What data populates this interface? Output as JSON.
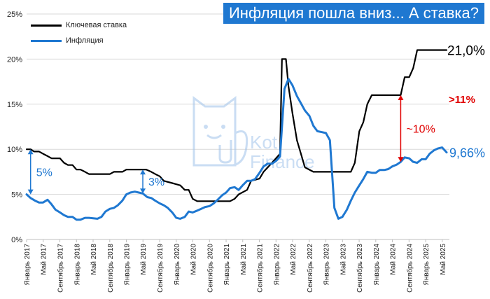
{
  "title": "Инфляция пошла вниз... А ставка?",
  "legend": [
    {
      "label": "Ключевая ставка",
      "color": "#000000"
    },
    {
      "label": "Инфляция",
      "color": "#1f78d1"
    }
  ],
  "watermark": {
    "line1": "Kot",
    "line2": "Finance",
    "icon": "cat-icon"
  },
  "colors": {
    "rate": "#000000",
    "inflation": "#1f78d1",
    "accent_red": "#e00000",
    "grid": "#d9d9d9"
  },
  "chart_data": {
    "type": "line",
    "title": "Инфляция пошла вниз... А ставка?",
    "xlabel": "",
    "ylabel": "",
    "ylim": [
      0,
      25
    ],
    "y_ticks": [
      "0%",
      "5%",
      "10%",
      "15%",
      "20%",
      "25%"
    ],
    "x_ticks": [
      {
        "t": 2017.0,
        "label": "Январь 2017"
      },
      {
        "t": 2017.333,
        "label": "Май 2017"
      },
      {
        "t": 2017.667,
        "label": "Сентябрь 2017"
      },
      {
        "t": 2018.0,
        "label": "Январь 2018"
      },
      {
        "t": 2018.333,
        "label": "Май 2018"
      },
      {
        "t": 2018.667,
        "label": "Сентябрь 2018"
      },
      {
        "t": 2019.0,
        "label": "Январь 2019"
      },
      {
        "t": 2019.333,
        "label": "Май 2019"
      },
      {
        "t": 2019.667,
        "label": "Сентябрь 2019"
      },
      {
        "t": 2020.0,
        "label": "Январь 2020"
      },
      {
        "t": 2020.333,
        "label": "Май 2020"
      },
      {
        "t": 2020.667,
        "label": "Сентябрь 2020"
      },
      {
        "t": 2021.0,
        "label": "Январь 2021"
      },
      {
        "t": 2021.333,
        "label": "Май 2021"
      },
      {
        "t": 2021.667,
        "label": "Сентябрь 2021"
      },
      {
        "t": 2022.0,
        "label": "Январь 2022"
      },
      {
        "t": 2022.333,
        "label": "Май 2022"
      },
      {
        "t": 2022.667,
        "label": "Сентябрь 2022"
      },
      {
        "t": 2023.0,
        "label": "Январь 2023"
      },
      {
        "t": 2023.333,
        "label": "Май 2023"
      },
      {
        "t": 2023.667,
        "label": "Сентябрь 2023"
      },
      {
        "t": 2024.0,
        "label": "Январь 2024"
      },
      {
        "t": 2024.333,
        "label": "Май 2024"
      },
      {
        "t": 2024.667,
        "label": "Сентябрь 2024"
      },
      {
        "t": 2025.0,
        "label": "Январь 2025"
      },
      {
        "t": 2025.333,
        "label": "Май 2025"
      }
    ],
    "series": [
      {
        "name": "Ключевая ставка",
        "color": "#000000",
        "points": [
          [
            2017.0,
            10.0
          ],
          [
            2017.08,
            10.0
          ],
          [
            2017.15,
            9.75
          ],
          [
            2017.25,
            9.75
          ],
          [
            2017.33,
            9.5
          ],
          [
            2017.42,
            9.25
          ],
          [
            2017.5,
            9.0
          ],
          [
            2017.67,
            9.0
          ],
          [
            2017.75,
            8.5
          ],
          [
            2017.83,
            8.25
          ],
          [
            2017.92,
            8.25
          ],
          [
            2018.0,
            7.75
          ],
          [
            2018.08,
            7.75
          ],
          [
            2018.17,
            7.5
          ],
          [
            2018.25,
            7.25
          ],
          [
            2018.5,
            7.25
          ],
          [
            2018.67,
            7.25
          ],
          [
            2018.75,
            7.5
          ],
          [
            2018.92,
            7.5
          ],
          [
            2019.0,
            7.75
          ],
          [
            2019.4,
            7.75
          ],
          [
            2019.5,
            7.5
          ],
          [
            2019.58,
            7.25
          ],
          [
            2019.67,
            7.0
          ],
          [
            2019.75,
            6.5
          ],
          [
            2019.92,
            6.25
          ],
          [
            2020.08,
            6.0
          ],
          [
            2020.17,
            5.5
          ],
          [
            2020.25,
            5.5
          ],
          [
            2020.33,
            4.5
          ],
          [
            2020.42,
            4.25
          ],
          [
            2020.58,
            4.25
          ],
          [
            2021.08,
            4.25
          ],
          [
            2021.17,
            4.5
          ],
          [
            2021.25,
            5.0
          ],
          [
            2021.42,
            5.5
          ],
          [
            2021.5,
            6.5
          ],
          [
            2021.67,
            6.75
          ],
          [
            2021.75,
            7.5
          ],
          [
            2021.92,
            8.5
          ],
          [
            2022.08,
            9.5
          ],
          [
            2022.12,
            20.0
          ],
          [
            2022.2,
            20.0
          ],
          [
            2022.25,
            17.0
          ],
          [
            2022.33,
            14.0
          ],
          [
            2022.42,
            11.0
          ],
          [
            2022.5,
            9.5
          ],
          [
            2022.58,
            8.0
          ],
          [
            2022.75,
            7.5
          ],
          [
            2023.5,
            7.5
          ],
          [
            2023.58,
            8.5
          ],
          [
            2023.67,
            12.0
          ],
          [
            2023.75,
            13.0
          ],
          [
            2023.83,
            15.0
          ],
          [
            2023.92,
            16.0
          ],
          [
            2024.0,
            16.0
          ],
          [
            2024.5,
            16.0
          ],
          [
            2024.58,
            18.0
          ],
          [
            2024.67,
            18.0
          ],
          [
            2024.75,
            19.0
          ],
          [
            2024.83,
            21.0
          ],
          [
            2025.42,
            21.0
          ]
        ]
      },
      {
        "name": "Инфляция",
        "color": "#1f78d1",
        "points": [
          [
            2017.0,
            5.0
          ],
          [
            2017.08,
            4.6
          ],
          [
            2017.17,
            4.3
          ],
          [
            2017.25,
            4.1
          ],
          [
            2017.33,
            4.1
          ],
          [
            2017.42,
            4.4
          ],
          [
            2017.5,
            3.9
          ],
          [
            2017.58,
            3.3
          ],
          [
            2017.67,
            3.0
          ],
          [
            2017.75,
            2.7
          ],
          [
            2017.83,
            2.5
          ],
          [
            2017.92,
            2.5
          ],
          [
            2018.0,
            2.2
          ],
          [
            2018.08,
            2.2
          ],
          [
            2018.17,
            2.4
          ],
          [
            2018.25,
            2.4
          ],
          [
            2018.42,
            2.3
          ],
          [
            2018.5,
            2.5
          ],
          [
            2018.58,
            3.1
          ],
          [
            2018.67,
            3.4
          ],
          [
            2018.75,
            3.5
          ],
          [
            2018.83,
            3.8
          ],
          [
            2018.92,
            4.3
          ],
          [
            2019.0,
            5.0
          ],
          [
            2019.08,
            5.2
          ],
          [
            2019.17,
            5.3
          ],
          [
            2019.25,
            5.2
          ],
          [
            2019.33,
            5.1
          ],
          [
            2019.42,
            4.7
          ],
          [
            2019.5,
            4.6
          ],
          [
            2019.58,
            4.3
          ],
          [
            2019.67,
            4.0
          ],
          [
            2019.75,
            3.8
          ],
          [
            2019.83,
            3.5
          ],
          [
            2019.92,
            3.0
          ],
          [
            2020.0,
            2.4
          ],
          [
            2020.08,
            2.3
          ],
          [
            2020.17,
            2.5
          ],
          [
            2020.25,
            3.1
          ],
          [
            2020.33,
            3.0
          ],
          [
            2020.42,
            3.2
          ],
          [
            2020.5,
            3.4
          ],
          [
            2020.58,
            3.6
          ],
          [
            2020.67,
            3.7
          ],
          [
            2020.75,
            4.0
          ],
          [
            2020.83,
            4.4
          ],
          [
            2020.92,
            4.9
          ],
          [
            2021.0,
            5.2
          ],
          [
            2021.08,
            5.7
          ],
          [
            2021.17,
            5.8
          ],
          [
            2021.25,
            5.5
          ],
          [
            2021.33,
            6.0
          ],
          [
            2021.42,
            6.5
          ],
          [
            2021.5,
            6.5
          ],
          [
            2021.58,
            6.7
          ],
          [
            2021.67,
            7.4
          ],
          [
            2021.75,
            8.1
          ],
          [
            2021.83,
            8.4
          ],
          [
            2021.92,
            8.4
          ],
          [
            2022.0,
            8.7
          ],
          [
            2022.08,
            9.2
          ],
          [
            2022.17,
            16.7
          ],
          [
            2022.25,
            17.8
          ],
          [
            2022.33,
            17.1
          ],
          [
            2022.42,
            15.9
          ],
          [
            2022.5,
            15.1
          ],
          [
            2022.58,
            14.3
          ],
          [
            2022.67,
            13.7
          ],
          [
            2022.75,
            12.6
          ],
          [
            2022.83,
            12.0
          ],
          [
            2022.92,
            11.9
          ],
          [
            2023.0,
            11.8
          ],
          [
            2023.08,
            11.0
          ],
          [
            2023.17,
            3.5
          ],
          [
            2023.25,
            2.3
          ],
          [
            2023.33,
            2.5
          ],
          [
            2023.42,
            3.3
          ],
          [
            2023.5,
            4.3
          ],
          [
            2023.58,
            5.2
          ],
          [
            2023.67,
            6.0
          ],
          [
            2023.75,
            6.7
          ],
          [
            2023.83,
            7.5
          ],
          [
            2023.92,
            7.4
          ],
          [
            2024.0,
            7.4
          ],
          [
            2024.08,
            7.7
          ],
          [
            2024.17,
            7.7
          ],
          [
            2024.25,
            7.8
          ],
          [
            2024.33,
            8.1
          ],
          [
            2024.42,
            8.3
          ],
          [
            2024.5,
            8.6
          ],
          [
            2024.58,
            9.1
          ],
          [
            2024.67,
            9.0
          ],
          [
            2024.75,
            8.6
          ],
          [
            2024.83,
            8.5
          ],
          [
            2024.92,
            8.9
          ],
          [
            2025.0,
            8.9
          ],
          [
            2025.08,
            9.5
          ],
          [
            2025.17,
            9.9
          ],
          [
            2025.25,
            10.1
          ],
          [
            2025.33,
            10.2
          ],
          [
            2025.42,
            9.66
          ]
        ]
      }
    ],
    "annotations": [
      {
        "text": "5%",
        "t": 2017.08,
        "from": 5.0,
        "to": 10.0,
        "color": "#1f78d1"
      },
      {
        "text": "3%",
        "t": 2019.33,
        "from": 5.1,
        "to": 7.75,
        "color": "#1f78d1"
      },
      {
        "text": "~10%",
        "t": 2024.5,
        "from": 8.6,
        "to": 16.0,
        "color": "#e00000"
      }
    ],
    "end_labels": [
      {
        "text": "21,0%",
        "value": 21.0,
        "color": "#000000"
      },
      {
        "text": "9,66%",
        "value": 9.66,
        "color": "#1f78d1"
      },
      {
        "text": ">11%",
        "value": 15.7,
        "color": "#e00000"
      }
    ]
  }
}
